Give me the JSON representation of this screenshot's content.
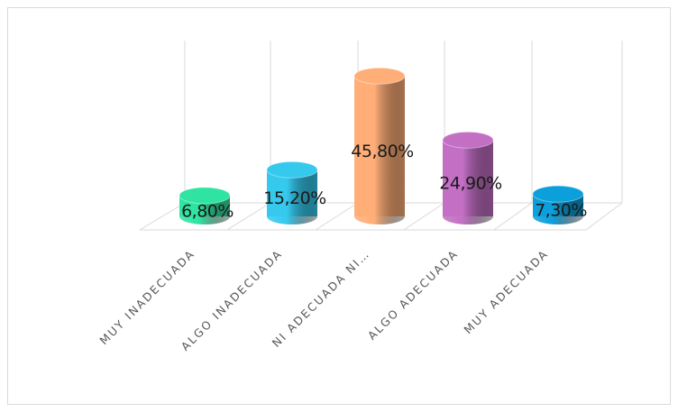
{
  "chart_data": {
    "type": "bar3d",
    "categories": [
      "MUY INADECUADA",
      "ALGO INADECUADA",
      "NI ADECUADA NI…",
      "ALGO ADECUADA",
      "MUY ADECUADA"
    ],
    "values": [
      6.8,
      15.2,
      45.8,
      24.9,
      7.3
    ],
    "value_labels": [
      "6,80%",
      "15,20%",
      "45,80%",
      "24,90%",
      "7,30%"
    ],
    "colors": [
      "#2fe3a2",
      "#35c9ee",
      "#ffae78",
      "#c26fc4",
      "#0b9fdb"
    ]
  }
}
